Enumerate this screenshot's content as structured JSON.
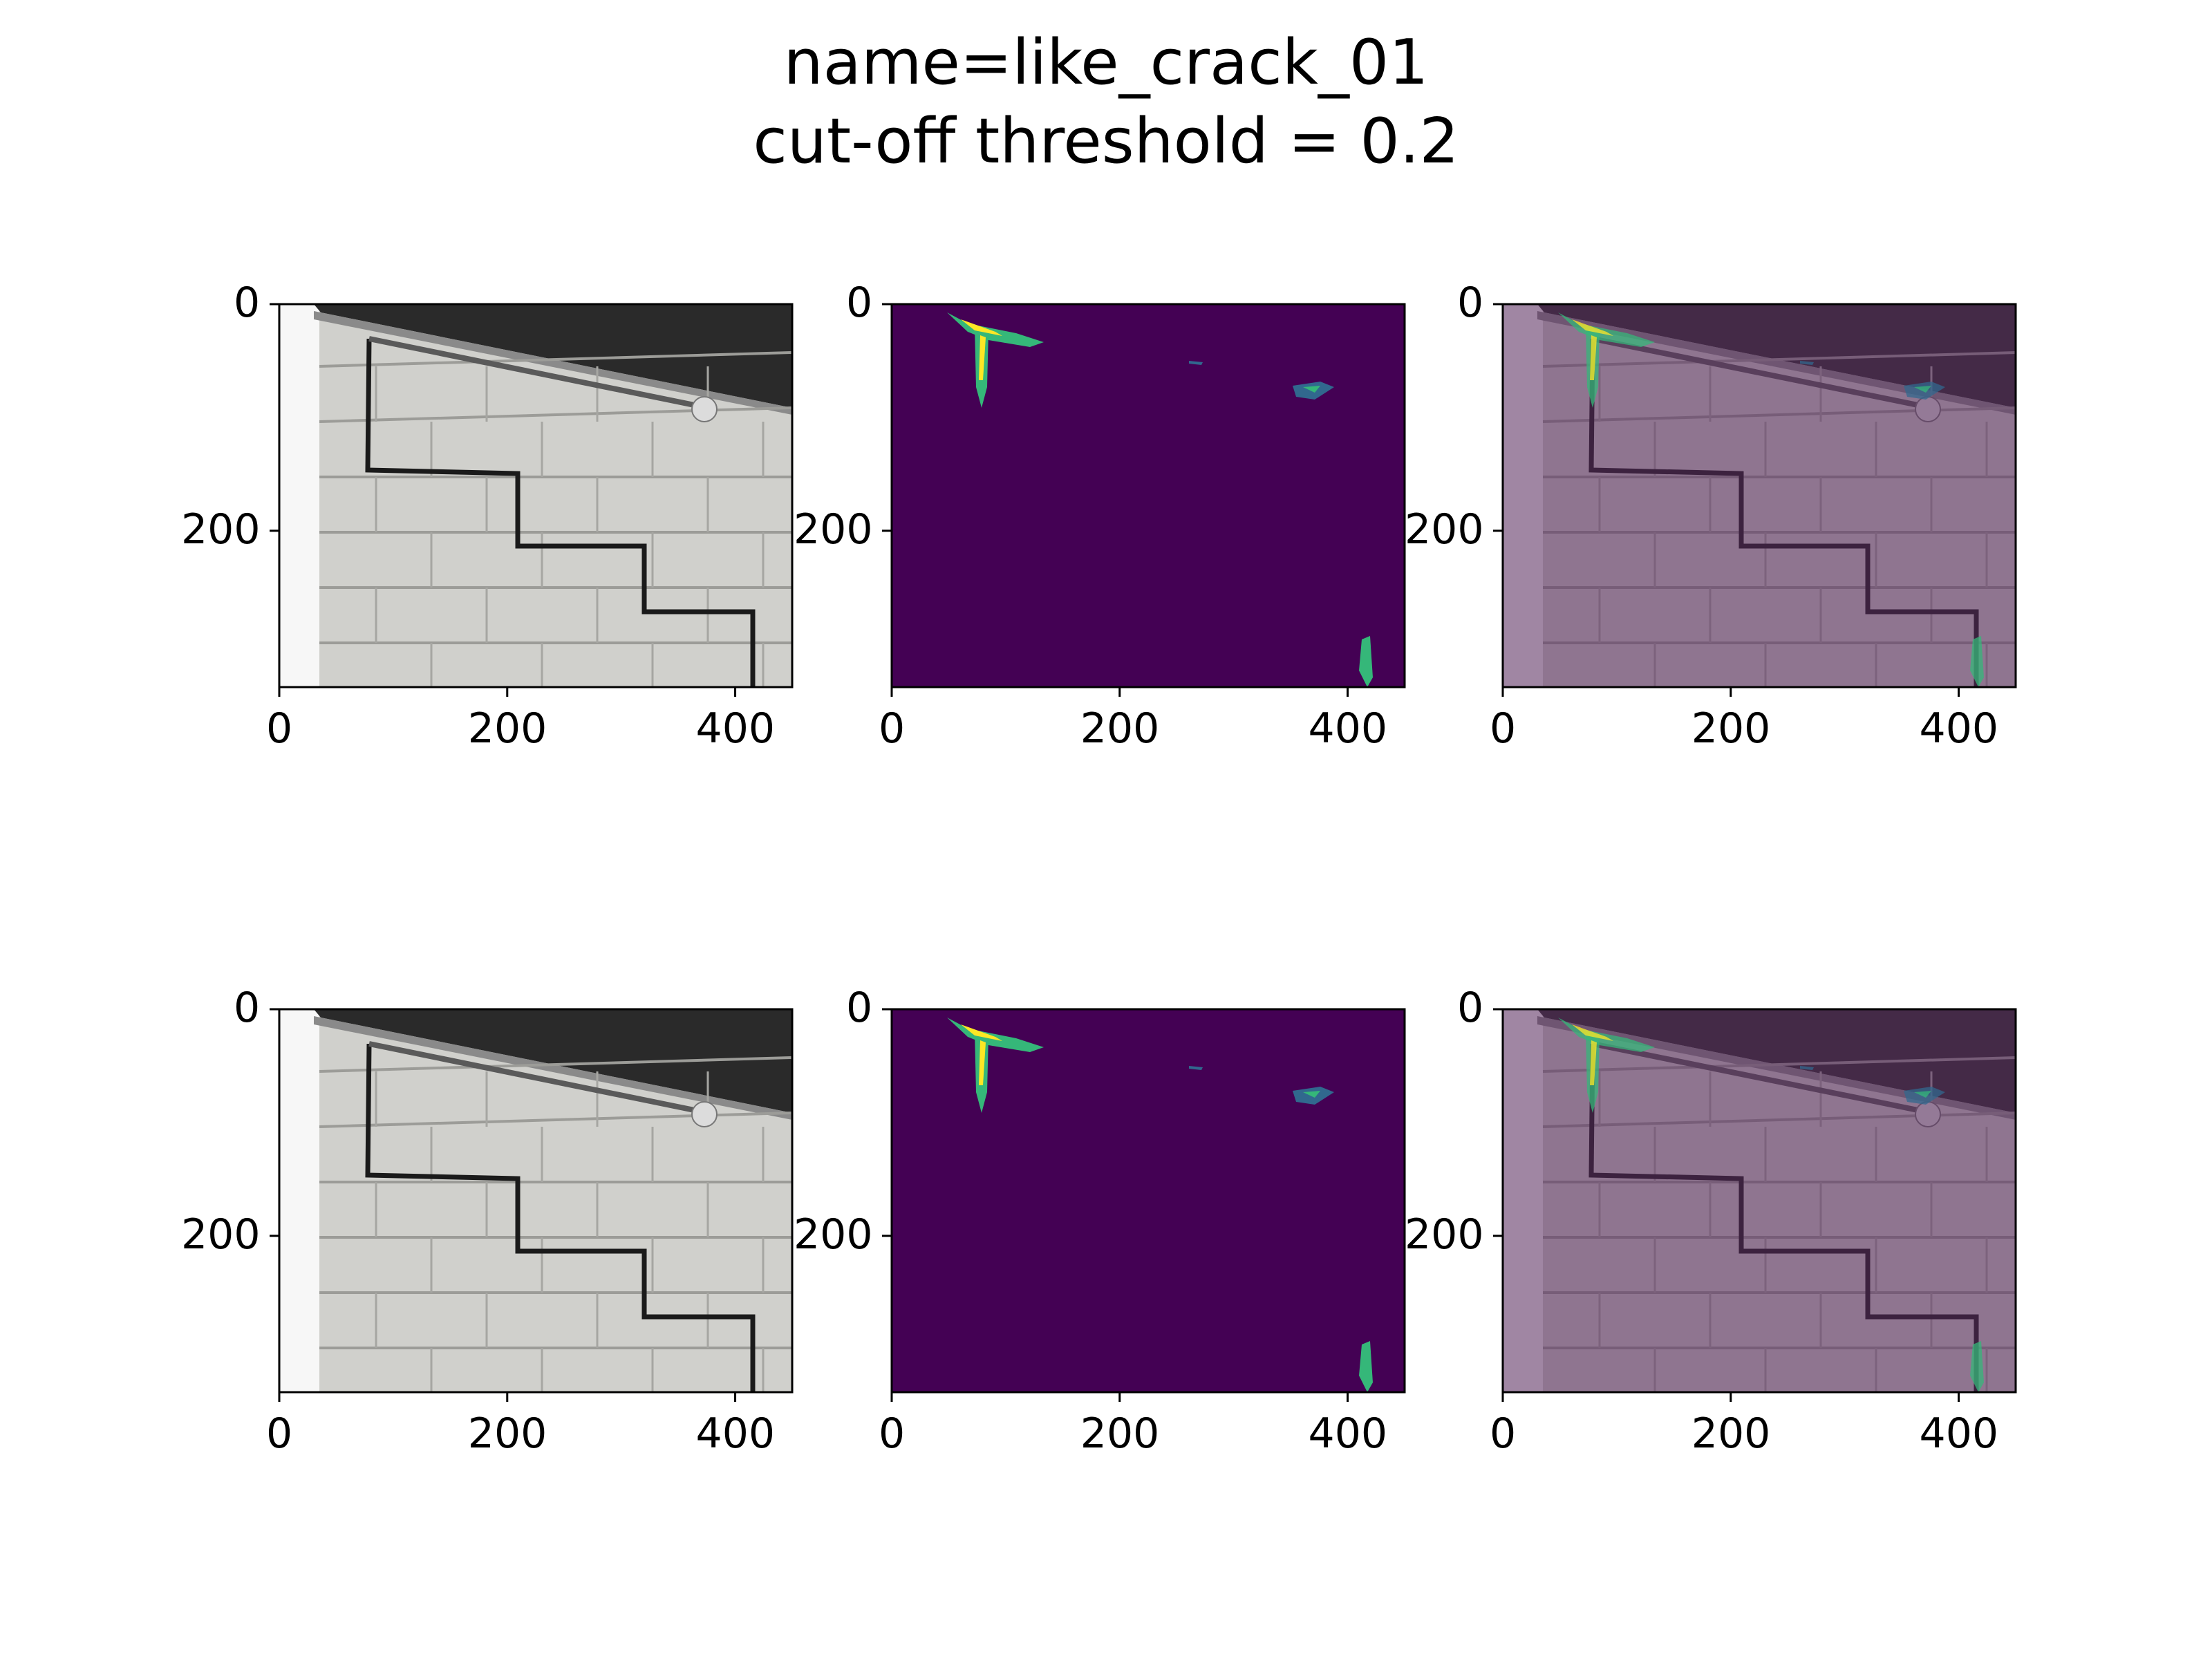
{
  "figure": {
    "title_line1": "name=like_crack_01",
    "title_line2": "cut-off threshold = 0.2"
  },
  "panels": [
    {
      "id": "r1c1",
      "kind": "photo",
      "x_ticks": [
        "0",
        "200",
        "400"
      ],
      "y_ticks": [
        "0",
        "200"
      ]
    },
    {
      "id": "r1c2",
      "kind": "heatmap",
      "x_ticks": [
        "0",
        "200",
        "400"
      ],
      "y_ticks": [
        "0",
        "200"
      ]
    },
    {
      "id": "r1c3",
      "kind": "overlay",
      "x_ticks": [
        "0",
        "200",
        "400"
      ],
      "y_ticks": [
        "0",
        "200"
      ]
    },
    {
      "id": "r2c1",
      "kind": "photo",
      "x_ticks": [
        "0",
        "200",
        "400"
      ],
      "y_ticks": [
        "0",
        "200"
      ]
    },
    {
      "id": "r2c2",
      "kind": "heatmap",
      "x_ticks": [
        "0",
        "200",
        "400"
      ],
      "y_ticks": [
        "0",
        "200"
      ]
    },
    {
      "id": "r2c3",
      "kind": "overlay",
      "x_ticks": [
        "0",
        "200",
        "400"
      ],
      "y_ticks": [
        "0",
        "200"
      ]
    }
  ],
  "colors": {
    "viridis_bg": "#440154",
    "overlay_tint": "#5a2a5e",
    "brick": "#c9c9c5",
    "mortar_crack": "#1a1a1a",
    "hot_yellow": "#fde725",
    "hot_green": "#35b779",
    "hot_teal": "#31688e"
  }
}
